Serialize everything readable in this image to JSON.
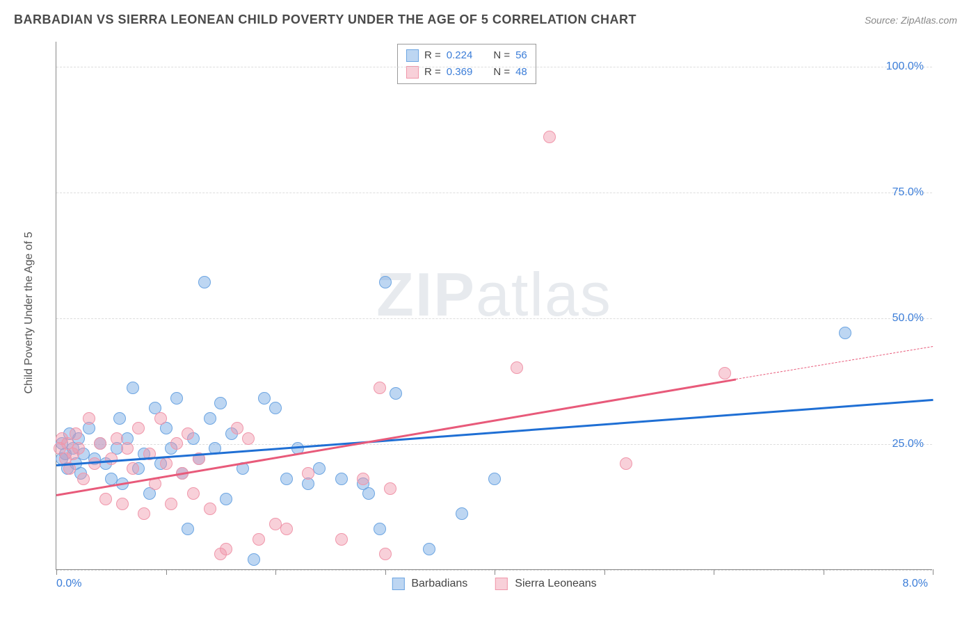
{
  "header": {
    "title": "BARBADIAN VS SIERRA LEONEAN CHILD POVERTY UNDER THE AGE OF 5 CORRELATION CHART",
    "source_prefix": "Source: ",
    "source_site": "ZipAtlas.com"
  },
  "chart": {
    "type": "scatter",
    "ylabel": "Child Poverty Under the Age of 5",
    "xlim": [
      0.0,
      8.0
    ],
    "ylim": [
      0.0,
      105.0
    ],
    "xtick_values": [
      0.0,
      1.0,
      2.0,
      3.0,
      4.0,
      5.0,
      6.0,
      7.0,
      8.0
    ],
    "xtick_labels": {
      "0": "0.0%",
      "8": "8.0%"
    },
    "ytick_values": [
      25.0,
      50.0,
      75.0,
      100.0
    ],
    "ytick_labels": [
      "25.0%",
      "50.0%",
      "75.0%",
      "100.0%"
    ],
    "gridline_y": [
      0,
      25,
      50,
      75,
      100
    ],
    "background_color": "#ffffff",
    "grid_color": "#dddddd",
    "axis_color": "#888888",
    "tick_label_color": "#3b7dd8",
    "label_fontsize": 16,
    "title_fontsize": 18,
    "marker_radius": 9,
    "marker_opacity": 0.55,
    "series": [
      {
        "name": "Barbadians",
        "color_fill": "rgba(108,165,226,0.45)",
        "color_stroke": "#6ca5e2",
        "trend_color": "#1f6fd4",
        "trend_width": 2.5,
        "R": 0.224,
        "N": 56,
        "trend": {
          "x1": 0.0,
          "y1": 21.0,
          "x2": 8.0,
          "y2": 34.0
        },
        "points": [
          [
            0.05,
            22
          ],
          [
            0.05,
            25
          ],
          [
            0.08,
            23
          ],
          [
            0.1,
            20
          ],
          [
            0.12,
            27
          ],
          [
            0.15,
            24
          ],
          [
            0.18,
            21
          ],
          [
            0.2,
            26
          ],
          [
            0.22,
            19
          ],
          [
            0.25,
            23
          ],
          [
            0.3,
            28
          ],
          [
            0.35,
            22
          ],
          [
            0.4,
            25
          ],
          [
            0.45,
            21
          ],
          [
            0.5,
            18
          ],
          [
            0.55,
            24
          ],
          [
            0.58,
            30
          ],
          [
            0.6,
            17
          ],
          [
            0.65,
            26
          ],
          [
            0.7,
            36
          ],
          [
            0.75,
            20
          ],
          [
            0.8,
            23
          ],
          [
            0.85,
            15
          ],
          [
            0.9,
            32
          ],
          [
            0.95,
            21
          ],
          [
            1.0,
            28
          ],
          [
            1.05,
            24
          ],
          [
            1.1,
            34
          ],
          [
            1.15,
            19
          ],
          [
            1.2,
            8
          ],
          [
            1.25,
            26
          ],
          [
            1.3,
            22
          ],
          [
            1.35,
            57
          ],
          [
            1.4,
            30
          ],
          [
            1.45,
            24
          ],
          [
            1.5,
            33
          ],
          [
            1.55,
            14
          ],
          [
            1.6,
            27
          ],
          [
            1.7,
            20
          ],
          [
            1.8,
            2
          ],
          [
            1.9,
            34
          ],
          [
            2.0,
            32
          ],
          [
            2.1,
            18
          ],
          [
            2.2,
            24
          ],
          [
            2.3,
            17
          ],
          [
            2.4,
            20
          ],
          [
            2.6,
            18
          ],
          [
            2.8,
            17
          ],
          [
            2.85,
            15
          ],
          [
            2.95,
            8
          ],
          [
            3.0,
            57
          ],
          [
            3.1,
            35
          ],
          [
            3.4,
            4
          ],
          [
            3.7,
            11
          ],
          [
            4.0,
            18
          ],
          [
            7.2,
            47
          ]
        ]
      },
      {
        "name": "Sierra Leoneans",
        "color_fill": "rgba(240,150,170,0.45)",
        "color_stroke": "#f096aa",
        "trend_color": "#e85a7a",
        "trend_width": 2.5,
        "R": 0.369,
        "N": 48,
        "trend": {
          "x1": 0.0,
          "y1": 15.0,
          "x2": 6.2,
          "y2": 38.0
        },
        "trend_dashed_extension": {
          "x1": 6.2,
          "y1": 38.0,
          "x2": 8.0,
          "y2": 44.5
        },
        "points": [
          [
            0.03,
            24
          ],
          [
            0.05,
            26
          ],
          [
            0.08,
            22
          ],
          [
            0.1,
            25
          ],
          [
            0.12,
            20
          ],
          [
            0.15,
            23
          ],
          [
            0.18,
            27
          ],
          [
            0.2,
            24
          ],
          [
            0.25,
            18
          ],
          [
            0.3,
            30
          ],
          [
            0.35,
            21
          ],
          [
            0.4,
            25
          ],
          [
            0.45,
            14
          ],
          [
            0.5,
            22
          ],
          [
            0.55,
            26
          ],
          [
            0.6,
            13
          ],
          [
            0.65,
            24
          ],
          [
            0.7,
            20
          ],
          [
            0.75,
            28
          ],
          [
            0.8,
            11
          ],
          [
            0.85,
            23
          ],
          [
            0.9,
            17
          ],
          [
            0.95,
            30
          ],
          [
            1.0,
            21
          ],
          [
            1.05,
            13
          ],
          [
            1.1,
            25
          ],
          [
            1.15,
            19
          ],
          [
            1.2,
            27
          ],
          [
            1.25,
            15
          ],
          [
            1.3,
            22
          ],
          [
            1.4,
            12
          ],
          [
            1.5,
            3
          ],
          [
            1.55,
            4
          ],
          [
            1.65,
            28
          ],
          [
            1.75,
            26
          ],
          [
            1.85,
            6
          ],
          [
            2.0,
            9
          ],
          [
            2.1,
            8
          ],
          [
            2.3,
            19
          ],
          [
            2.6,
            6
          ],
          [
            2.8,
            18
          ],
          [
            2.95,
            36
          ],
          [
            3.0,
            3
          ],
          [
            3.05,
            16
          ],
          [
            4.2,
            40
          ],
          [
            4.5,
            86
          ],
          [
            5.2,
            21
          ],
          [
            6.1,
            39
          ]
        ]
      }
    ],
    "legend_top": {
      "rows": [
        {
          "swatch_fill": "rgba(108,165,226,0.45)",
          "swatch_stroke": "#6ca5e2",
          "R_label": "R = ",
          "R": "0.224",
          "N_label": "N = ",
          "N": "56"
        },
        {
          "swatch_fill": "rgba(240,150,170,0.45)",
          "swatch_stroke": "#f096aa",
          "R_label": "R = ",
          "R": "0.369",
          "N_label": "N = ",
          "N": "48"
        }
      ]
    },
    "legend_bottom": [
      {
        "swatch_fill": "rgba(108,165,226,0.45)",
        "swatch_stroke": "#6ca5e2",
        "label": "Barbadians"
      },
      {
        "swatch_fill": "rgba(240,150,170,0.45)",
        "swatch_stroke": "#f096aa",
        "label": "Sierra Leoneans"
      }
    ],
    "watermark": {
      "bold": "ZIP",
      "rest": "atlas"
    }
  }
}
